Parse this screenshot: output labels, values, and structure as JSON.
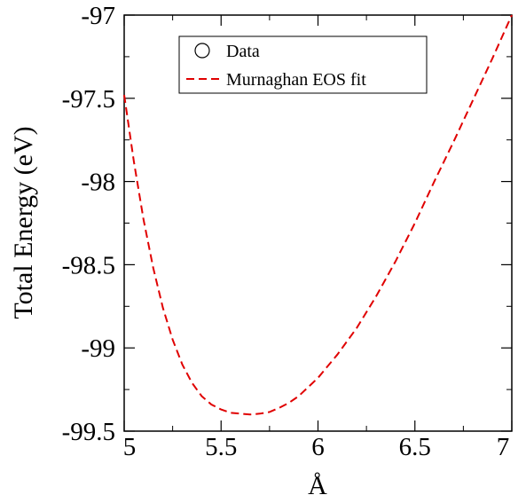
{
  "chart_data": {
    "type": "line",
    "title": "",
    "xlabel": "Å",
    "ylabel": "Total Energy (eV)",
    "xlim": [
      5,
      7
    ],
    "ylim": [
      -99.5,
      -97
    ],
    "xticks": [
      "5",
      "5.5",
      "6",
      "6.5",
      "7"
    ],
    "yticks": [
      "-97",
      "-97.5",
      "-98",
      "-98.5",
      "-99",
      "-99.5"
    ],
    "grid": false,
    "legend_position": "top-center",
    "series": [
      {
        "name": "Data",
        "kind": "markers",
        "marker": "open-circle",
        "color": "#000000",
        "points": []
      },
      {
        "name": "Murnaghan EOS fit",
        "kind": "line",
        "style": "dashed",
        "color": "#e00000",
        "points": [
          [
            5.0,
            -97.48
          ],
          [
            5.05,
            -97.88
          ],
          [
            5.1,
            -98.23
          ],
          [
            5.15,
            -98.52
          ],
          [
            5.2,
            -98.76
          ],
          [
            5.25,
            -98.95
          ],
          [
            5.3,
            -99.1
          ],
          [
            5.35,
            -99.21
          ],
          [
            5.4,
            -99.29
          ],
          [
            5.45,
            -99.34
          ],
          [
            5.5,
            -99.37
          ],
          [
            5.55,
            -99.39
          ],
          [
            5.6,
            -99.395
          ],
          [
            5.65,
            -99.4
          ],
          [
            5.7,
            -99.395
          ],
          [
            5.75,
            -99.385
          ],
          [
            5.8,
            -99.36
          ],
          [
            5.85,
            -99.33
          ],
          [
            5.9,
            -99.29
          ],
          [
            6.0,
            -99.18
          ],
          [
            6.1,
            -99.04
          ],
          [
            6.2,
            -98.88
          ],
          [
            6.3,
            -98.69
          ],
          [
            6.4,
            -98.48
          ],
          [
            6.5,
            -98.25
          ],
          [
            6.6,
            -98.0
          ],
          [
            6.7,
            -97.76
          ],
          [
            6.8,
            -97.51
          ],
          [
            6.9,
            -97.26
          ],
          [
            7.0,
            -97.0
          ]
        ]
      }
    ]
  }
}
